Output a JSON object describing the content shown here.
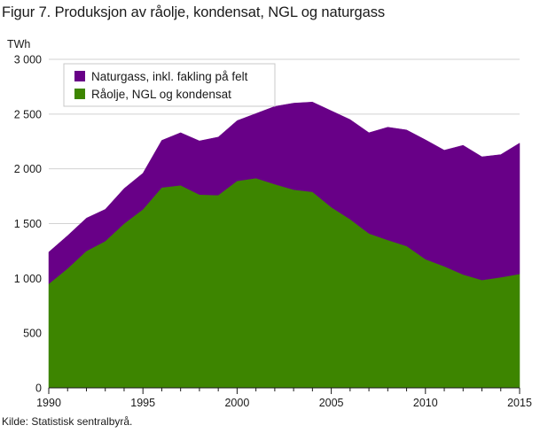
{
  "chart_data": {
    "type": "area",
    "stacked": true,
    "title": "Figur 7. Produksjon av råolje, kondensat, NGL og naturgass",
    "ylabel": "TWh",
    "xlabel": "",
    "ylim": [
      0,
      3000
    ],
    "xlim": [
      1990,
      2015
    ],
    "yticks": [
      0,
      500,
      1000,
      1500,
      2000,
      2500,
      3000
    ],
    "ytick_labels": [
      "0",
      "500",
      "1 000",
      "1 500",
      "2 000",
      "2 500",
      "3 000"
    ],
    "xticks": [
      1990,
      1995,
      2000,
      2005,
      2010,
      2015
    ],
    "xtick_labels": [
      "1990",
      "1995",
      "2000",
      "2005",
      "2010",
      "2015"
    ],
    "grid": "horizontal",
    "legend_position": "top-left",
    "x": [
      1990,
      1991,
      1992,
      1993,
      1994,
      1995,
      1996,
      1997,
      1998,
      1999,
      2000,
      2001,
      2002,
      2003,
      2004,
      2005,
      2006,
      2007,
      2008,
      2009,
      2010,
      2011,
      2012,
      2013,
      2014,
      2015
    ],
    "series": [
      {
        "name": "Råolje, NGL og kondensat",
        "color": "#3d8500",
        "values": [
          950,
          1090,
          1250,
          1340,
          1500,
          1630,
          1830,
          1850,
          1765,
          1760,
          1890,
          1915,
          1860,
          1810,
          1790,
          1650,
          1540,
          1410,
          1350,
          1295,
          1175,
          1110,
          1035,
          985,
          1010,
          1040
        ]
      },
      {
        "name": "Naturgass, inkl. fakling på felt",
        "color": "#680087",
        "values": [
          290,
          300,
          300,
          290,
          320,
          330,
          430,
          480,
          490,
          530,
          550,
          590,
          710,
          790,
          820,
          880,
          910,
          920,
          1030,
          1060,
          1090,
          1060,
          1180,
          1125,
          1120,
          1195
        ]
      }
    ],
    "source_note": "Kilde: Statistisk sentralbyrå."
  }
}
